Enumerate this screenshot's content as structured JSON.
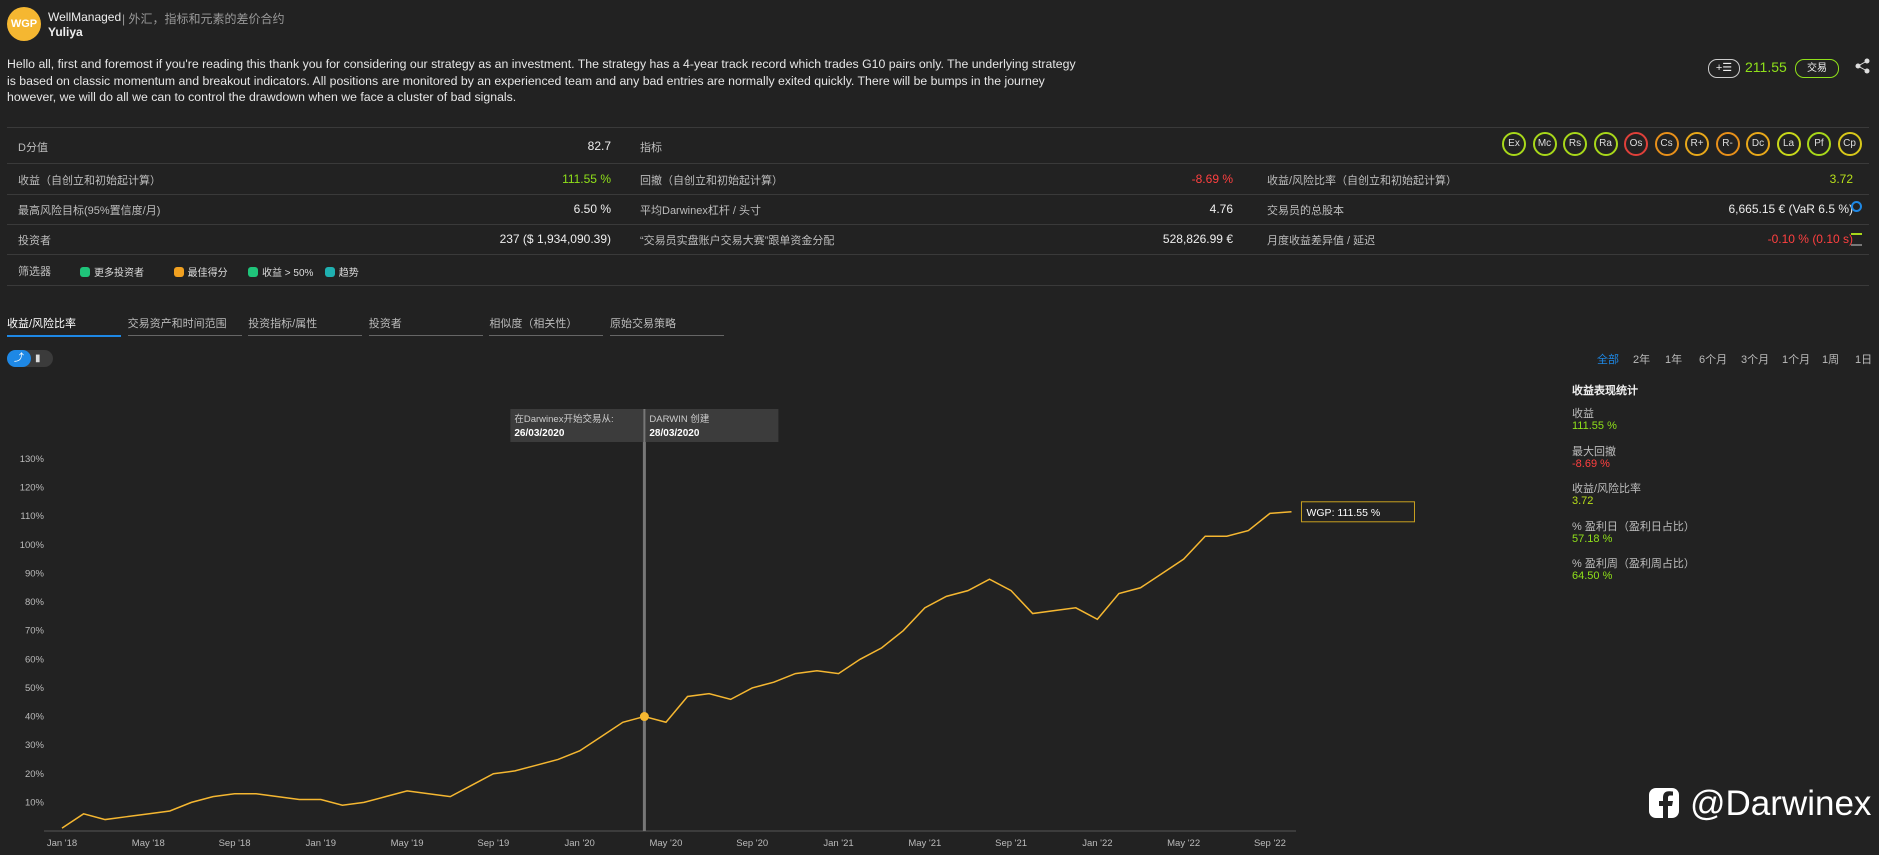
{
  "header": {
    "logo": "WGP",
    "name": "WellManaged",
    "category": "| 外汇，指标和元素的差价合约",
    "trader": "Yuliya"
  },
  "description": "Hello all, first and foremost if you're reading this thank you for considering our strategy as an investment. The strategy has a 4-year track record which trades G10 pairs only. The underlying strategy is based on classic momentum and breakout indicators. All positions are monitored by an experienced team and any bad entries are normally exited quickly. There will be bumps in the journey however, we will do all we can to control the drawdown when we face a cluster of bad signals.",
  "price": "211.55",
  "trade_button": "交易",
  "score": {
    "label": "D分值",
    "value": "82.7"
  },
  "indicators": {
    "label": "指标",
    "badges": [
      {
        "text": "Ex",
        "color": "#a8d81a"
      },
      {
        "text": "Mc",
        "color": "#a8d81a"
      },
      {
        "text": "Rs",
        "color": "#a8d81a"
      },
      {
        "text": "Ra",
        "color": "#a8d81a"
      },
      {
        "text": "Os",
        "color": "#e0403a"
      },
      {
        "text": "Cs",
        "color": "#e8901a"
      },
      {
        "text": "R+",
        "color": "#e8a81a"
      },
      {
        "text": "R-",
        "color": "#e8901a"
      },
      {
        "text": "Dc",
        "color": "#e8a81a"
      },
      {
        "text": "La",
        "color": "#c8d81a"
      },
      {
        "text": "Pf",
        "color": "#a8d81a"
      },
      {
        "text": "Cp",
        "color": "#d8c81a"
      }
    ]
  },
  "stats": [
    [
      {
        "label": "收益（自创立和初始起计算）",
        "value": "111.55 %",
        "color": "#8fe01a"
      },
      {
        "label": "回撤（自创立和初始起计算）",
        "value": "-8.69 %",
        "color": "#ff4040"
      },
      {
        "label": "收益/风险比率（自创立和初始起计算）",
        "value": "3.72",
        "color": "#b8e01a"
      }
    ],
    [
      {
        "label": "最高风险目标(95%置信度/月)",
        "value": "6.50 %",
        "color": "#eeeeee"
      },
      {
        "label": "平均Darwinex杠杆 / 头寸",
        "value": "4.76",
        "color": "#eeeeee"
      },
      {
        "label": "交易员的总股本",
        "value": "6,665.15 € (VaR 6.5 %)",
        "color": "#eeeeee"
      }
    ],
    [
      {
        "label": "投资者",
        "value": "237 ($ 1,934,090.39)",
        "color": "#eeeeee"
      },
      {
        "label": "“交易员实盘账户交易大赛”跟单资金分配",
        "value": "528,826.99 €",
        "color": "#eeeeee"
      },
      {
        "label": "月度收益差异值 / 延迟",
        "value": "-0.10 % (0.10 s)",
        "color": "#ff4040"
      }
    ]
  ],
  "filters": {
    "label": "筛选器",
    "tags": [
      {
        "text": "更多投资者",
        "color": "#1fc47a"
      },
      {
        "text": "最佳得分",
        "color": "#f0a020"
      },
      {
        "text": "收益 > 50%",
        "color": "#1fc47a"
      },
      {
        "text": "趋势",
        "color": "#1fb0b0"
      }
    ]
  },
  "tabs": [
    "收益/风险比率",
    "交易资产和时间范围",
    "投资指标/属性",
    "投资者",
    "相似度（相关性）",
    "原始交易策略"
  ],
  "ranges": [
    "全部",
    "2年",
    "1年",
    "6个月",
    "3个月",
    "1个月",
    "1周",
    "1日"
  ],
  "sidebar": {
    "title": "收益表现统计",
    "items": [
      {
        "label": "收益",
        "value": "111.55 %",
        "color": "#8fe01a"
      },
      {
        "label": "最大回撤",
        "value": "-8.69 %",
        "color": "#ff4040"
      },
      {
        "label": "收益/风险比率",
        "value": "3.72",
        "color": "#b8e01a"
      },
      {
        "label": "% 盈利日（盈利日占比）",
        "value": "57.18 %",
        "color": "#8fe01a"
      },
      {
        "label": "% 盈利周（盈利周占比）",
        "value": "64.50 %",
        "color": "#8fe01a"
      }
    ]
  },
  "watermark": "@Darwinex",
  "chart_data": {
    "type": "line",
    "categories": [
      "Jan '18",
      null,
      null,
      null,
      "May '18",
      null,
      null,
      null,
      "Sep '18",
      null,
      null,
      null,
      "Jan '19",
      null,
      null,
      null,
      "May '19",
      null,
      null,
      null,
      "Sep '19",
      null,
      null,
      null,
      "Jan '20",
      null,
      null,
      null,
      "May '20",
      null,
      null,
      null,
      "Sep '20",
      null,
      null,
      null,
      "Jan '21",
      null,
      null,
      null,
      "May '21",
      null,
      null,
      null,
      "Sep '21",
      null,
      null,
      null,
      "Jan '22",
      null,
      null,
      null,
      "May '22",
      null,
      null,
      null,
      "Sep '22",
      null
    ],
    "series": [
      {
        "color": "#f5b731",
        "values": [
          1,
          6,
          4,
          5,
          6,
          7,
          10,
          12,
          13,
          13,
          12,
          11,
          11,
          9,
          10,
          12,
          14,
          13,
          12,
          16,
          20,
          21,
          23,
          25,
          28,
          33,
          38,
          40,
          38,
          47,
          48,
          46,
          50,
          52,
          55,
          56,
          55,
          60,
          64,
          70,
          78,
          82,
          84,
          88,
          84,
          76,
          77,
          78,
          74,
          83,
          85,
          90,
          95,
          103,
          103,
          105,
          111,
          111.55
        ]
      }
    ],
    "ylim": [
      0,
      130
    ],
    "yticks": [
      {
        "value": 10,
        "label": "10%"
      },
      {
        "value": 20,
        "label": "20%"
      },
      {
        "value": 30,
        "label": "30%"
      },
      {
        "value": 40,
        "label": "40%"
      },
      {
        "value": 50,
        "label": "50%"
      },
      {
        "value": 60,
        "label": "60%"
      },
      {
        "value": 70,
        "label": "70%"
      },
      {
        "value": 80,
        "label": "80%"
      },
      {
        "value": 90,
        "label": "90%"
      },
      {
        "value": 100,
        "label": "100%"
      },
      {
        "value": 110,
        "label": "110%"
      },
      {
        "value": 120,
        "label": "120%"
      },
      {
        "value": 130,
        "label": "130%"
      }
    ],
    "annotations": [
      {
        "label": "在Darwinex开始交易从:",
        "date": "26/03/2020"
      },
      {
        "label": "DARWIN 创建",
        "date": "28/03/2020"
      }
    ],
    "tooltip": "WGP: 111.55 %"
  }
}
